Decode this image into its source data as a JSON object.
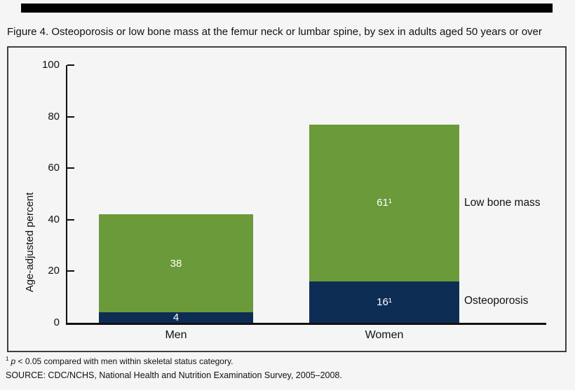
{
  "title": "Figure 4. Osteoporosis or low bone mass at the femur neck or lumbar spine, by sex in adults aged 50 years or over",
  "chart_data": {
    "type": "bar",
    "stacked": true,
    "title": "Figure 4. Osteoporosis or low bone mass at the femur neck or lumbar spine, by sex in adults aged 50 years or over",
    "categories": [
      "Men",
      "Women"
    ],
    "series": [
      {
        "name": "Osteoporosis",
        "color": "#0e2d55",
        "values": [
          4,
          16
        ],
        "labels": [
          "4",
          "16¹"
        ]
      },
      {
        "name": "Low bone mass",
        "color": "#6a9a39",
        "values": [
          38,
          61
        ],
        "labels": [
          "38",
          "61¹"
        ]
      }
    ],
    "totals": [
      42,
      77
    ],
    "xlabel": "",
    "ylabel": "Age-adjusted percent",
    "ylim": [
      0,
      100
    ],
    "yticks": [
      0,
      20,
      40,
      60,
      80,
      100
    ],
    "grid": false,
    "legend_position": "right-of-bars"
  },
  "annotations": {
    "low_bone_mass": "Low bone mass",
    "osteoporosis": "Osteoporosis"
  },
  "footnotes": {
    "marker": "1",
    "p_symbol": "p",
    "note_rest": " < 0.05 compared with men within skeletal status category.",
    "source": "SOURCE: CDC/NCHS, National Health and Nutrition Examination Survey, 2005–2008."
  },
  "colors": {
    "background": "#f5f5f5",
    "bar_green": "#6a9a39",
    "bar_navy": "#0e2d55",
    "axis": "#111111",
    "top_bar": "#010101"
  }
}
